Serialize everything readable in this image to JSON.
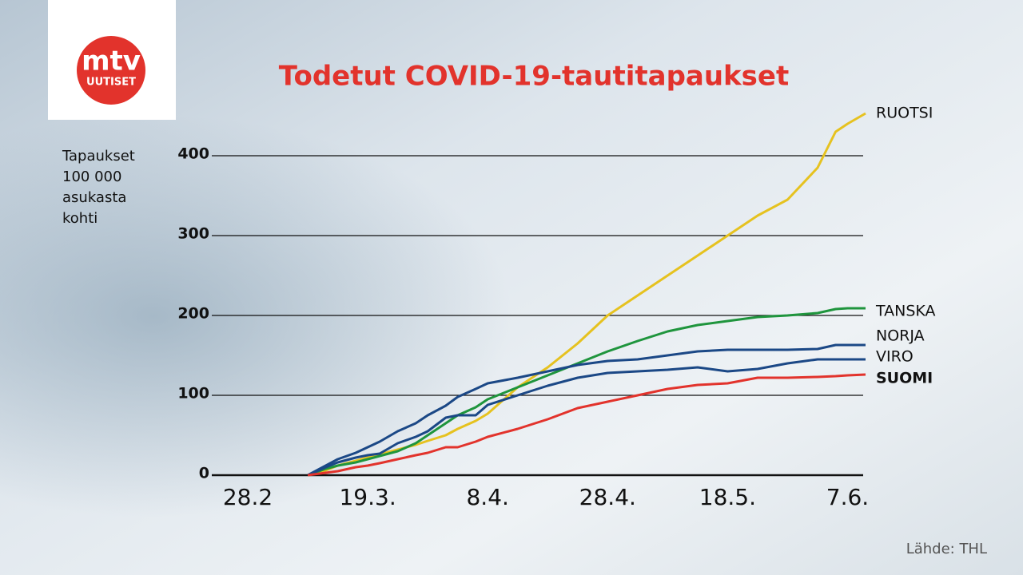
{
  "logo": {
    "name": "mtv",
    "subtitle": "UUTISET"
  },
  "source": "Lähde: THL",
  "chart_data": {
    "type": "line",
    "title": "Todetut COVID-19-tautitapaukset",
    "y_label": [
      "Tapaukset",
      "100 000",
      "asukasta",
      "kohti"
    ],
    "x": [
      10,
      13,
      15,
      18,
      20,
      22,
      25,
      28,
      30,
      33,
      35,
      38,
      40,
      45,
      50,
      55,
      60,
      65,
      70,
      75,
      80,
      85,
      90,
      95,
      98,
      100,
      103
    ],
    "xlim": [
      -6,
      103
    ],
    "xticks": [
      {
        "value": 0,
        "label": "28.2"
      },
      {
        "value": 20,
        "label": "19.3."
      },
      {
        "value": 40,
        "label": "8.4."
      },
      {
        "value": 60,
        "label": "28.4."
      },
      {
        "value": 80,
        "label": "18.5."
      },
      {
        "value": 100,
        "label": "7.6."
      }
    ],
    "ylim": [
      0,
      460
    ],
    "yticks": [
      0,
      100,
      200,
      300,
      400
    ],
    "grid": true,
    "series": [
      {
        "name": "RUOTSI",
        "color": "#e6c21f",
        "values": [
          0,
          6,
          12,
          18,
          22,
          26,
          32,
          38,
          43,
          50,
          58,
          68,
          77,
          110,
          135,
          165,
          200,
          225,
          250,
          275,
          300,
          325,
          345,
          385,
          430,
          440,
          453
        ]
      },
      {
        "name": "TANSKA",
        "color": "#1f953d",
        "values": [
          0,
          8,
          12,
          16,
          20,
          24,
          30,
          40,
          50,
          65,
          75,
          85,
          95,
          110,
          125,
          140,
          155,
          168,
          180,
          188,
          193,
          198,
          200,
          203,
          208,
          209,
          209
        ]
      },
      {
        "name": "NORJA",
        "color": "#1b4886",
        "values": [
          0,
          12,
          20,
          28,
          35,
          42,
          55,
          65,
          75,
          87,
          98,
          108,
          115,
          122,
          130,
          138,
          143,
          145,
          150,
          155,
          157,
          157,
          157,
          158,
          163,
          163,
          163
        ]
      },
      {
        "name": "VIRO",
        "color": "#1b4886",
        "values": [
          0,
          10,
          16,
          22,
          25,
          27,
          40,
          48,
          55,
          72,
          75,
          75,
          88,
          100,
          112,
          122,
          128,
          130,
          132,
          135,
          130,
          133,
          140,
          145,
          145,
          145,
          145
        ]
      },
      {
        "name": "SUOMI",
        "color": "#e2332c",
        "values": [
          0,
          3,
          5,
          10,
          12,
          15,
          20,
          25,
          28,
          35,
          35,
          42,
          48,
          58,
          70,
          84,
          92,
          100,
          108,
          113,
          115,
          122,
          122,
          123,
          124,
          125,
          126
        ]
      }
    ]
  }
}
